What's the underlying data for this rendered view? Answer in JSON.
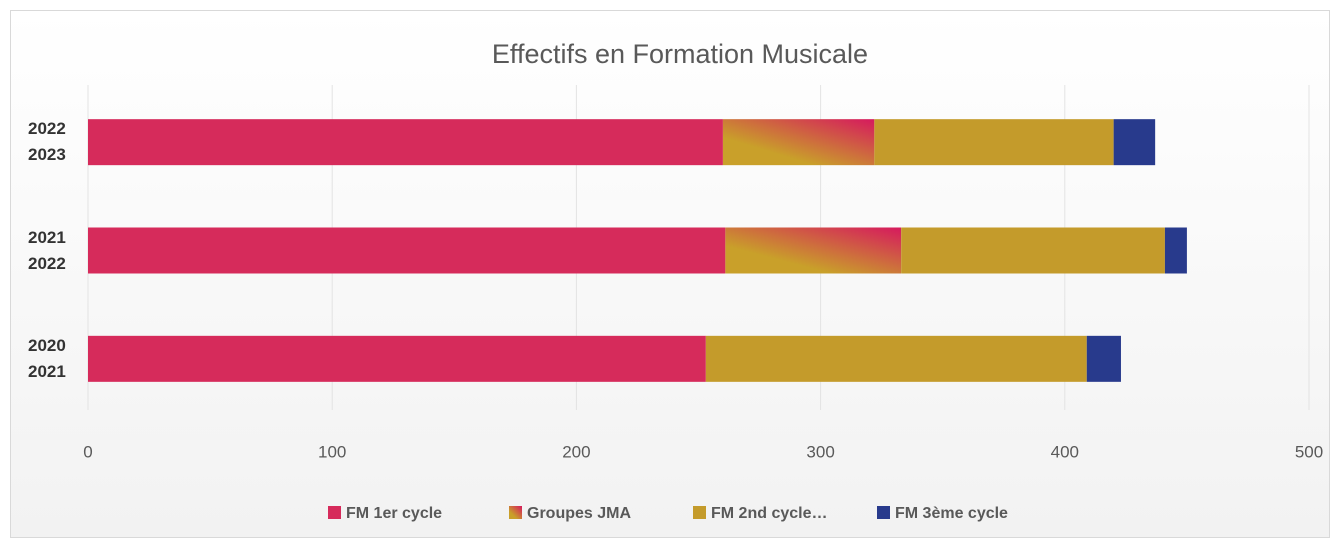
{
  "chart_data": {
    "type": "stacked-bar-horizontal",
    "title": "Effectifs en Formation Musicale",
    "categories": [
      "2020 2021",
      "2021 2022",
      "2022 2023"
    ],
    "series": [
      {
        "name": "FM 1er cycle",
        "color": "#d62b5b",
        "values": [
          253,
          261,
          260
        ]
      },
      {
        "name": "Groupes JMA",
        "color": [
          "#c9a02a",
          "#d6195e"
        ],
        "values": [
          0,
          72,
          62
        ]
      },
      {
        "name": "FM 2nd cycle…",
        "color": "#c49b2b",
        "values": [
          156,
          108,
          98
        ]
      },
      {
        "name": "FM 3ème cycle",
        "color": "#283a8c",
        "values": [
          14,
          9,
          17
        ]
      }
    ],
    "xlim": [
      0,
      500
    ],
    "xticks": [
      0,
      100,
      200,
      300,
      400,
      500
    ],
    "grid": true,
    "legend": "bottom"
  }
}
